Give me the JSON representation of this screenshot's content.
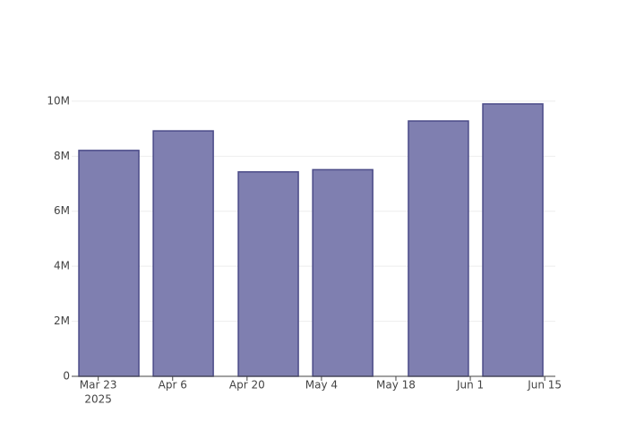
{
  "chart_data": {
    "type": "bar",
    "x": [
      "2025-03-25",
      "2025-04-08",
      "2025-04-24",
      "2025-05-08",
      "2025-05-26",
      "2025-06-09"
    ],
    "values": [
      8210000,
      8920000,
      7430000,
      7510000,
      9280000,
      9900000
    ],
    "color": "#7f7fb0",
    "edge_color": "#4b4b88",
    "xlim": [
      "2025-03-18",
      "2025-06-17"
    ],
    "xticks": [
      {
        "value": "2025-03-23",
        "label": "Mar 23"
      },
      {
        "value": "2025-04-06",
        "label": "Apr 6"
      },
      {
        "value": "2025-04-20",
        "label": "Apr 20"
      },
      {
        "value": "2025-05-04",
        "label": "May 4"
      },
      {
        "value": "2025-05-18",
        "label": "May 18"
      },
      {
        "value": "2025-06-01",
        "label": "Jun 1"
      },
      {
        "value": "2025-06-15",
        "label": "Jun 15"
      }
    ],
    "x_year_label": "2025",
    "ylim": [
      0,
      10420000
    ],
    "yticks": [
      0,
      {
        "value": 2000000,
        "label": "2M"
      },
      {
        "value": 4000000,
        "label": "4M"
      },
      {
        "value": 6000000,
        "label": "6M"
      },
      {
        "value": 8000000,
        "label": "8M"
      },
      {
        "value": 10000000,
        "label": "10M"
      }
    ],
    "grid": true
  }
}
